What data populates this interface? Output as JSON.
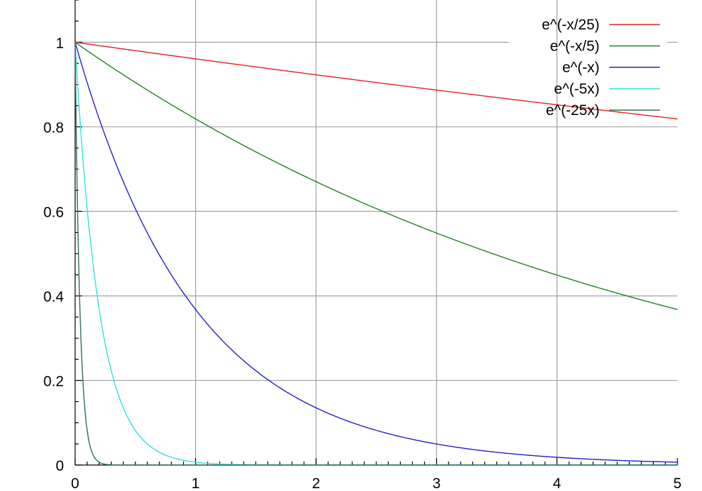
{
  "chart_data": {
    "type": "line",
    "title": "",
    "xlabel": "",
    "ylabel": "",
    "xlim": [
      0,
      5
    ],
    "ylim": [
      0,
      1.1
    ],
    "x_ticks": [
      0,
      1,
      2,
      3,
      4,
      5
    ],
    "x_tick_labels": [
      "0",
      "1",
      "2",
      "3",
      "4",
      "5"
    ],
    "y_ticks": [
      0,
      0.2,
      0.4,
      0.6,
      0.8,
      1
    ],
    "y_tick_labels": [
      "0",
      "0.2",
      "0.4",
      "0.6",
      "0.8",
      "1"
    ],
    "x_minor_ticks_per_major": 10,
    "y_minor_ticks_per_major": 4,
    "grid": true,
    "legend_position": "top-right",
    "series": [
      {
        "name": "e^(-x/25)",
        "color": "#e02020",
        "rate": 0.04,
        "x": [
          0,
          1,
          2,
          3,
          4,
          5
        ],
        "y": [
          1,
          0.961,
          0.923,
          0.887,
          0.852,
          0.819
        ]
      },
      {
        "name": "e^(-x/5)",
        "color": "#208020",
        "rate": 0.2,
        "x": [
          0,
          1,
          2,
          3,
          4,
          5
        ],
        "y": [
          1,
          0.819,
          0.67,
          0.549,
          0.449,
          0.368
        ]
      },
      {
        "name": "e^(-x)",
        "color": "#2020c8",
        "rate": 1,
        "x": [
          0,
          0.5,
          1,
          1.5,
          2,
          3,
          4,
          5
        ],
        "y": [
          1,
          0.607,
          0.368,
          0.223,
          0.135,
          0.05,
          0.018,
          0.007
        ]
      },
      {
        "name": "e^(-5x)",
        "color": "#30e0e0",
        "rate": 5,
        "x": [
          0,
          0.2,
          0.4,
          0.6,
          1
        ],
        "y": [
          1,
          0.368,
          0.135,
          0.05,
          0.007
        ]
      },
      {
        "name": "e^(-25x)",
        "color": "#2f6f4f",
        "rate": 25,
        "x": [
          0,
          0.04,
          0.08,
          0.12,
          0.2
        ],
        "y": [
          1,
          0.368,
          0.135,
          0.05,
          0.007
        ]
      }
    ]
  }
}
